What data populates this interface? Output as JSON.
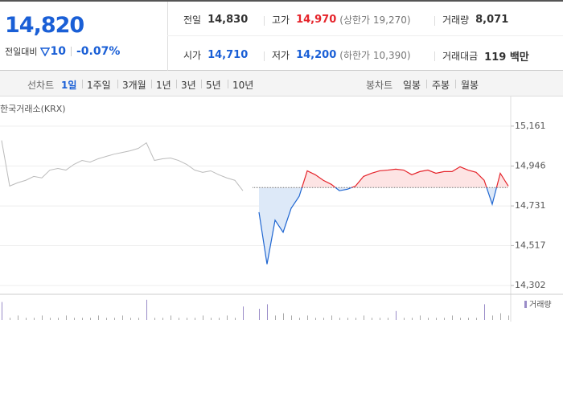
{
  "quote": {
    "price": "14,820",
    "change_label": "전일대비",
    "change": "10",
    "change_pct": "-0.07%",
    "cells": [
      {
        "label": "전일",
        "value": "14,830"
      },
      {
        "label": "고가",
        "value": "14,970",
        "note": "(상한가 19,270)"
      },
      {
        "label": "거래량",
        "value": "8,071"
      },
      {
        "label": "시가",
        "value": "14,710"
      },
      {
        "label": "저가",
        "value": "14,200",
        "note": "(하한가 10,390)"
      },
      {
        "label": "거래대금",
        "value": "119 백만"
      }
    ]
  },
  "tabs": {
    "line_label": "선차트",
    "line": [
      "1일",
      "1주일",
      "3개월",
      "1년",
      "3년",
      "5년",
      "10년"
    ],
    "candle_label": "봉차트",
    "candle": [
      "일봉",
      "주봉",
      "월봉"
    ]
  },
  "chart_data": {
    "type": "line",
    "source": "한국거래소(KRX)",
    "ylim": [
      14259,
      15234
    ],
    "yticks": [
      {
        "value": 15161,
        "label": "15,161"
      },
      {
        "value": 14946,
        "label": "14,946"
      },
      {
        "value": 14731,
        "label": "14,731"
      },
      {
        "value": 14517,
        "label": "14,517"
      },
      {
        "value": 14302,
        "label": "14,302"
      }
    ],
    "grid": true,
    "reference_line": 14830,
    "series": [
      {
        "color": "#bbbbbb",
        "values": [
          15084,
          14838,
          14856,
          14869,
          14890,
          14882,
          14924,
          14933,
          14924,
          14955,
          14976,
          14967,
          14985,
          14998,
          15010,
          15019,
          15028,
          15041,
          15071,
          14976,
          14985,
          14989,
          14976,
          14955,
          14924,
          14912,
          14920,
          14899,
          14882,
          14869,
          14813,
          null,
          null,
          null,
          null,
          null,
          null,
          null,
          null,
          null,
          null,
          null,
          null,
          null,
          null,
          null,
          null,
          null,
          null,
          null,
          null,
          null,
          null,
          null,
          null,
          null,
          null,
          null,
          null,
          null,
          null,
          null,
          null,
          null
        ]
      },
      {
        "color": "#e5242b",
        "below_color": "#1f66d1",
        "values": [
          null,
          null,
          null,
          null,
          null,
          null,
          null,
          null,
          null,
          null,
          null,
          null,
          null,
          null,
          null,
          null,
          null,
          null,
          null,
          null,
          null,
          null,
          null,
          null,
          null,
          null,
          null,
          null,
          null,
          null,
          null,
          null,
          14697,
          14417,
          14654,
          14589,
          14718,
          14783,
          14920,
          14899,
          14869,
          14847,
          14813,
          14821,
          14838,
          14890,
          14907,
          14920,
          14924,
          14929,
          14924,
          14899,
          14916,
          14924,
          14907,
          14916,
          14916,
          14942,
          14924,
          14912,
          14869,
          14740,
          14907,
          14838
        ]
      },
      {
        "name": "거래량",
        "color": "#9a8cc8",
        "axis": "y2",
        "values": [
          8,
          1,
          2,
          1,
          1,
          2,
          1,
          1,
          2,
          1,
          1,
          1,
          2,
          1,
          1,
          2,
          1,
          1,
          9,
          1,
          1,
          2,
          1,
          1,
          1,
          2,
          1,
          1,
          2,
          1,
          6,
          null,
          5,
          7,
          2,
          3,
          2,
          1,
          2,
          1,
          1,
          2,
          1,
          1,
          1,
          2,
          1,
          1,
          1,
          4,
          1,
          1,
          2,
          1,
          1,
          1,
          2,
          1,
          1,
          1,
          7,
          2,
          3,
          2
        ]
      }
    ],
    "y2lim": [
      0,
      10
    ]
  }
}
